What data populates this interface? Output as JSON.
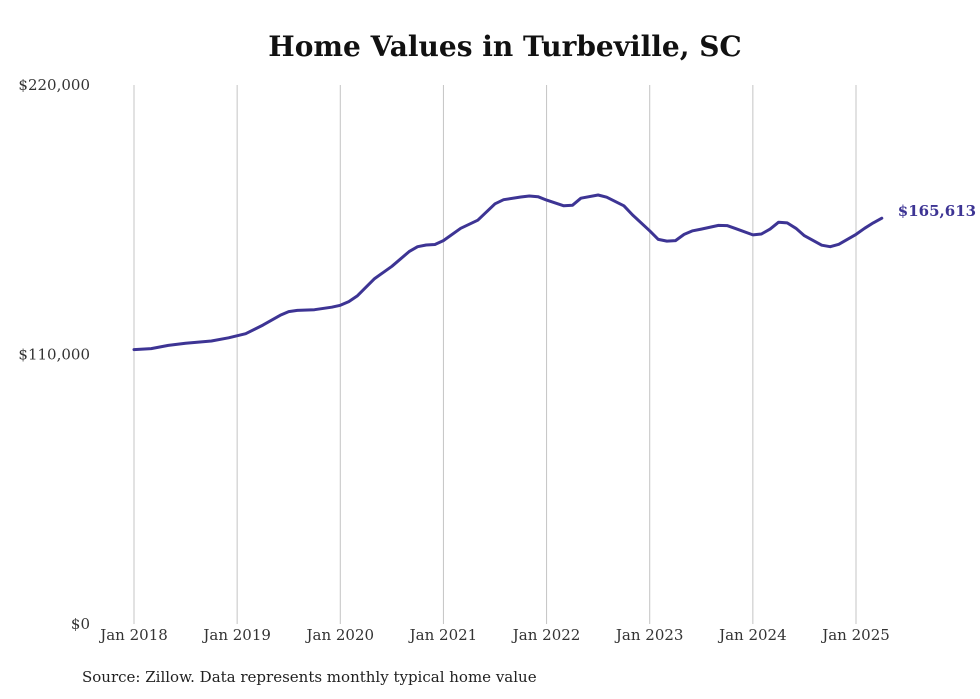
{
  "source_note": "Source: Zillow. Data represents monthly typical home value",
  "chart_data": {
    "type": "line",
    "title": "Home Values in Turbeville, SC",
    "xlabel": "",
    "ylabel": "",
    "ylim": [
      0,
      220000
    ],
    "y_ticks": [
      {
        "value": 0,
        "label": "$0"
      },
      {
        "value": 110000,
        "label": "$110,000"
      },
      {
        "value": 220000,
        "label": "$220,000"
      }
    ],
    "x_ticks": [
      {
        "value": 2018,
        "label": "Jan 2018"
      },
      {
        "value": 2019,
        "label": "Jan 2019"
      },
      {
        "value": 2020,
        "label": "Jan 2020"
      },
      {
        "value": 2021,
        "label": "Jan 2021"
      },
      {
        "value": 2022,
        "label": "Jan 2022"
      },
      {
        "value": 2023,
        "label": "Jan 2023"
      },
      {
        "value": 2024,
        "label": "Jan 2024"
      },
      {
        "value": 2025,
        "label": "Jan 2025"
      }
    ],
    "xlim": [
      2018,
      2025
    ],
    "grid": "vertical",
    "line_color": "#3d3494",
    "end_label": "$165,613",
    "series": [
      {
        "values": [
          [
            2018.0,
            112000
          ],
          [
            2018.167,
            112400
          ],
          [
            2018.333,
            113700
          ],
          [
            2018.5,
            114600
          ],
          [
            2018.667,
            115200
          ],
          [
            2018.75,
            115500
          ],
          [
            2018.917,
            116800
          ],
          [
            2019.083,
            118500
          ],
          [
            2019.25,
            122000
          ],
          [
            2019.417,
            126000
          ],
          [
            2019.5,
            127500
          ],
          [
            2019.583,
            128000
          ],
          [
            2019.75,
            128300
          ],
          [
            2019.917,
            129300
          ],
          [
            2020.0,
            130100
          ],
          [
            2020.083,
            131600
          ],
          [
            2020.167,
            134000
          ],
          [
            2020.25,
            137500
          ],
          [
            2020.333,
            141000
          ],
          [
            2020.5,
            146000
          ],
          [
            2020.667,
            152000
          ],
          [
            2020.75,
            154000
          ],
          [
            2020.833,
            154700
          ],
          [
            2020.917,
            154900
          ],
          [
            2021.0,
            156500
          ],
          [
            2021.167,
            161500
          ],
          [
            2021.333,
            164800
          ],
          [
            2021.5,
            171500
          ],
          [
            2021.583,
            173200
          ],
          [
            2021.75,
            174300
          ],
          [
            2021.833,
            174700
          ],
          [
            2021.917,
            174400
          ],
          [
            2022.0,
            173000
          ],
          [
            2022.167,
            170700
          ],
          [
            2022.25,
            170900
          ],
          [
            2022.333,
            173800
          ],
          [
            2022.5,
            175100
          ],
          [
            2022.583,
            174200
          ],
          [
            2022.75,
            170700
          ],
          [
            2022.833,
            167000
          ],
          [
            2023.0,
            160500
          ],
          [
            2023.083,
            157000
          ],
          [
            2023.167,
            156300
          ],
          [
            2023.25,
            156500
          ],
          [
            2023.333,
            159000
          ],
          [
            2023.417,
            160500
          ],
          [
            2023.5,
            161200
          ],
          [
            2023.667,
            162700
          ],
          [
            2023.75,
            162600
          ],
          [
            2023.833,
            161400
          ],
          [
            2024.0,
            158800
          ],
          [
            2024.083,
            159200
          ],
          [
            2024.167,
            161200
          ],
          [
            2024.25,
            164000
          ],
          [
            2024.333,
            163700
          ],
          [
            2024.417,
            161500
          ],
          [
            2024.5,
            158500
          ],
          [
            2024.667,
            154600
          ],
          [
            2024.75,
            154000
          ],
          [
            2024.833,
            155000
          ],
          [
            2025.0,
            159000
          ],
          [
            2025.083,
            161500
          ],
          [
            2025.167,
            163700
          ],
          [
            2025.25,
            165613
          ]
        ]
      }
    ]
  }
}
